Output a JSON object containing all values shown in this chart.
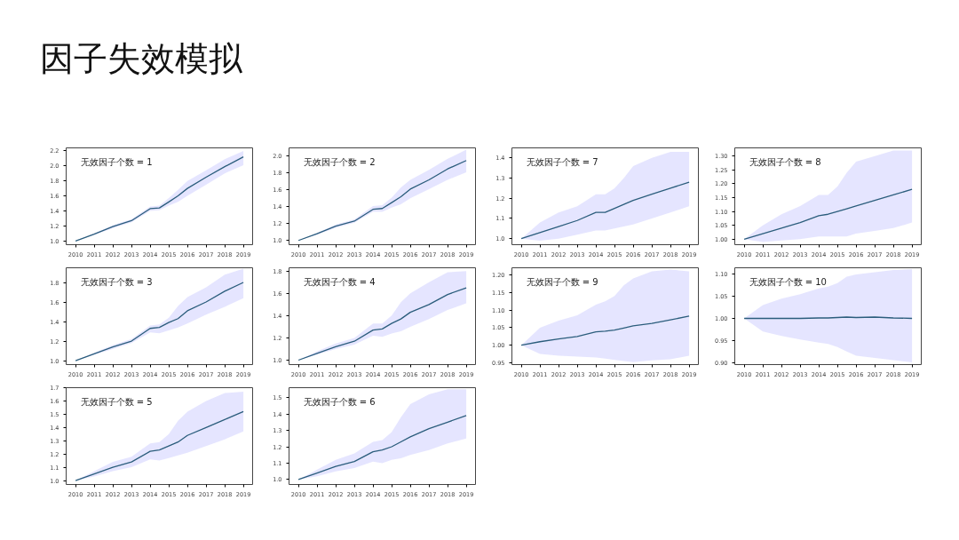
{
  "chart_data": [
    {
      "type": "other",
      "title": "因子失效模拟"
    },
    {
      "type": "line",
      "annotations": [
        "无效因子个数 = 1"
      ],
      "x": [
        "2010-01",
        "2011-01",
        "2012-01",
        "2013-01",
        "2014-01",
        "2014-07",
        "2015-01",
        "2015-07",
        "2016-01",
        "2017-01",
        "2018-01",
        "2019-01"
      ],
      "xlim": [
        "2009-07",
        "2019-07"
      ],
      "xticks": [
        "2010",
        "2011",
        "2012",
        "2013",
        "2014",
        "2015",
        "2016",
        "2017",
        "2018",
        "2019"
      ],
      "ylim": [
        0.95,
        2.24
      ],
      "yticks": [
        {
          "value": 1.0,
          "label": "1.0"
        },
        {
          "value": 1.2,
          "label": "1.2"
        },
        {
          "value": 1.4,
          "label": "1.4"
        },
        {
          "value": 1.6,
          "label": "1.6"
        },
        {
          "value": 1.8,
          "label": "1.8"
        },
        {
          "value": 2.0,
          "label": "2.0"
        },
        {
          "value": 2.2,
          "label": "2.2"
        }
      ],
      "series": [
        {
          "color": "#2b5d7c",
          "values": [
            1.0,
            1.09,
            1.19,
            1.27,
            1.43,
            1.44,
            1.52,
            1.6,
            1.7,
            1.85,
            1.99,
            2.12
          ],
          "lower": [
            1.0,
            1.08,
            1.17,
            1.25,
            1.4,
            1.41,
            1.47,
            1.52,
            1.6,
            1.75,
            1.9,
            2.01
          ],
          "upper": [
            1.0,
            1.1,
            1.21,
            1.29,
            1.46,
            1.47,
            1.57,
            1.68,
            1.8,
            1.94,
            2.09,
            2.2
          ]
        }
      ]
    },
    {
      "type": "line",
      "annotations": [
        "无效因子个数 = 2"
      ],
      "x": [
        "2010-01",
        "2011-01",
        "2012-01",
        "2013-01",
        "2014-01",
        "2014-07",
        "2015-01",
        "2015-07",
        "2016-01",
        "2017-01",
        "2018-01",
        "2019-01"
      ],
      "xlim": [
        "2009-07",
        "2019-07"
      ],
      "xticks": [
        "2010",
        "2011",
        "2012",
        "2013",
        "2014",
        "2015",
        "2016",
        "2017",
        "2018",
        "2019"
      ],
      "ylim": [
        0.95,
        2.1
      ],
      "yticks": [
        {
          "value": 1.0,
          "label": "1.0"
        },
        {
          "value": 1.2,
          "label": "1.2"
        },
        {
          "value": 1.4,
          "label": "1.4"
        },
        {
          "value": 1.6,
          "label": "1.6"
        },
        {
          "value": 1.8,
          "label": "1.8"
        },
        {
          "value": 2.0,
          "label": "2.0"
        }
      ],
      "series": [
        {
          "color": "#2b5d7c",
          "values": [
            1.0,
            1.08,
            1.17,
            1.23,
            1.37,
            1.38,
            1.45,
            1.52,
            1.61,
            1.72,
            1.85,
            1.95
          ],
          "lower": [
            1.0,
            1.07,
            1.15,
            1.21,
            1.34,
            1.34,
            1.39,
            1.43,
            1.5,
            1.61,
            1.72,
            1.81
          ],
          "upper": [
            1.0,
            1.09,
            1.19,
            1.25,
            1.41,
            1.42,
            1.51,
            1.63,
            1.72,
            1.84,
            1.97,
            2.08
          ]
        }
      ]
    },
    {
      "type": "line",
      "annotations": [
        "无效因子个数 = 7"
      ],
      "x": [
        "2010-01",
        "2011-01",
        "2012-01",
        "2013-01",
        "2014-01",
        "2014-07",
        "2015-01",
        "2015-07",
        "2016-01",
        "2017-01",
        "2018-01",
        "2019-01"
      ],
      "xlim": [
        "2009-07",
        "2019-07"
      ],
      "xticks": [
        "2010",
        "2011",
        "2012",
        "2013",
        "2014",
        "2015",
        "2016",
        "2017",
        "2018",
        "2019"
      ],
      "ylim": [
        0.97,
        1.45
      ],
      "yticks": [
        {
          "value": 1.0,
          "label": "1.0"
        },
        {
          "value": 1.1,
          "label": "1.1"
        },
        {
          "value": 1.2,
          "label": "1.2"
        },
        {
          "value": 1.3,
          "label": "1.3"
        },
        {
          "value": 1.4,
          "label": "1.4"
        }
      ],
      "series": [
        {
          "color": "#2b5d7c",
          "values": [
            1.0,
            1.03,
            1.06,
            1.09,
            1.13,
            1.13,
            1.15,
            1.17,
            1.19,
            1.22,
            1.25,
            1.28
          ],
          "lower": [
            1.0,
            0.99,
            1.0,
            1.02,
            1.04,
            1.04,
            1.05,
            1.06,
            1.07,
            1.1,
            1.13,
            1.16
          ],
          "upper": [
            1.0,
            1.08,
            1.13,
            1.16,
            1.22,
            1.22,
            1.25,
            1.3,
            1.36,
            1.4,
            1.43,
            1.43
          ]
        }
      ]
    },
    {
      "type": "line",
      "annotations": [
        "无效因子个数 = 8"
      ],
      "x": [
        "2010-01",
        "2011-01",
        "2012-01",
        "2013-01",
        "2014-01",
        "2014-07",
        "2015-01",
        "2015-07",
        "2016-01",
        "2017-01",
        "2018-01",
        "2019-01"
      ],
      "xlim": [
        "2009-07",
        "2019-07"
      ],
      "xticks": [
        "2010",
        "2011",
        "2012",
        "2013",
        "2014",
        "2015",
        "2016",
        "2017",
        "2018",
        "2019"
      ],
      "ylim": [
        0.98,
        1.33
      ],
      "yticks": [
        {
          "value": 1.0,
          "label": "1.00"
        },
        {
          "value": 1.05,
          "label": "1.05"
        },
        {
          "value": 1.1,
          "label": "1.10"
        },
        {
          "value": 1.15,
          "label": "1.15"
        },
        {
          "value": 1.2,
          "label": "1.20"
        },
        {
          "value": 1.25,
          "label": "1.25"
        },
        {
          "value": 1.3,
          "label": "1.30"
        }
      ],
      "series": [
        {
          "color": "#2b5d7c",
          "values": [
            1.0,
            1.02,
            1.04,
            1.06,
            1.085,
            1.09,
            1.1,
            1.11,
            1.12,
            1.14,
            1.16,
            1.18
          ],
          "lower": [
            1.0,
            0.99,
            0.995,
            1.0,
            1.01,
            1.01,
            1.01,
            1.01,
            1.02,
            1.03,
            1.04,
            1.06
          ],
          "upper": [
            1.0,
            1.05,
            1.09,
            1.12,
            1.16,
            1.16,
            1.19,
            1.24,
            1.28,
            1.3,
            1.32,
            1.32
          ]
        }
      ]
    },
    {
      "type": "line",
      "annotations": [
        "无效因子个数 = 3"
      ],
      "x": [
        "2010-01",
        "2011-01",
        "2012-01",
        "2013-01",
        "2014-01",
        "2014-07",
        "2015-01",
        "2015-07",
        "2016-01",
        "2017-01",
        "2018-01",
        "2019-01"
      ],
      "xlim": [
        "2009-07",
        "2019-07"
      ],
      "xticks": [
        "2010",
        "2011",
        "2012",
        "2013",
        "2014",
        "2015",
        "2016",
        "2017",
        "2018",
        "2019"
      ],
      "ylim": [
        0.96,
        1.95
      ],
      "yticks": [
        {
          "value": 1.0,
          "label": "1.0"
        },
        {
          "value": 1.2,
          "label": "1.2"
        },
        {
          "value": 1.4,
          "label": "1.4"
        },
        {
          "value": 1.6,
          "label": "1.6"
        },
        {
          "value": 1.8,
          "label": "1.8"
        }
      ],
      "series": [
        {
          "color": "#2b5d7c",
          "values": [
            1.0,
            1.07,
            1.14,
            1.2,
            1.33,
            1.34,
            1.39,
            1.43,
            1.51,
            1.6,
            1.71,
            1.8
          ],
          "lower": [
            1.0,
            1.06,
            1.12,
            1.18,
            1.29,
            1.28,
            1.31,
            1.34,
            1.38,
            1.47,
            1.55,
            1.64
          ],
          "upper": [
            1.0,
            1.08,
            1.16,
            1.22,
            1.36,
            1.37,
            1.44,
            1.56,
            1.65,
            1.75,
            1.88,
            1.94
          ]
        }
      ]
    },
    {
      "type": "line",
      "annotations": [
        "无效因子个数 = 4"
      ],
      "x": [
        "2010-01",
        "2011-01",
        "2012-01",
        "2013-01",
        "2014-01",
        "2014-07",
        "2015-01",
        "2015-07",
        "2016-01",
        "2017-01",
        "2018-01",
        "2019-01"
      ],
      "xlim": [
        "2009-07",
        "2019-07"
      ],
      "xticks": [
        "2010",
        "2011",
        "2012",
        "2013",
        "2014",
        "2015",
        "2016",
        "2017",
        "2018",
        "2019"
      ],
      "ylim": [
        0.96,
        1.83
      ],
      "yticks": [
        {
          "value": 1.0,
          "label": "1.0"
        },
        {
          "value": 1.2,
          "label": "1.2"
        },
        {
          "value": 1.4,
          "label": "1.4"
        },
        {
          "value": 1.6,
          "label": "1.6"
        },
        {
          "value": 1.8,
          "label": "1.8"
        }
      ],
      "series": [
        {
          "color": "#2b5d7c",
          "values": [
            1.0,
            1.06,
            1.12,
            1.17,
            1.27,
            1.28,
            1.33,
            1.37,
            1.43,
            1.5,
            1.59,
            1.65
          ],
          "lower": [
            1.0,
            1.05,
            1.1,
            1.14,
            1.22,
            1.21,
            1.24,
            1.26,
            1.3,
            1.37,
            1.45,
            1.51
          ],
          "upper": [
            1.0,
            1.08,
            1.15,
            1.2,
            1.33,
            1.33,
            1.4,
            1.52,
            1.6,
            1.7,
            1.79,
            1.8
          ]
        }
      ]
    },
    {
      "type": "line",
      "annotations": [
        "无效因子个数 = 9"
      ],
      "x": [
        "2010-01",
        "2011-01",
        "2012-01",
        "2013-01",
        "2014-01",
        "2014-07",
        "2015-01",
        "2015-07",
        "2016-01",
        "2017-01",
        "2018-01",
        "2019-01"
      ],
      "xlim": [
        "2009-07",
        "2019-07"
      ],
      "xticks": [
        "2010",
        "2011",
        "2012",
        "2013",
        "2014",
        "2015",
        "2016",
        "2017",
        "2018",
        "2019"
      ],
      "ylim": [
        0.945,
        1.22
      ],
      "yticks": [
        {
          "value": 0.95,
          "label": "0.95"
        },
        {
          "value": 1.0,
          "label": "1.00"
        },
        {
          "value": 1.05,
          "label": "1.05"
        },
        {
          "value": 1.1,
          "label": "1.10"
        },
        {
          "value": 1.15,
          "label": "1.15"
        },
        {
          "value": 1.2,
          "label": "1.20"
        }
      ],
      "series": [
        {
          "color": "#2b5d7c",
          "values": [
            1.0,
            1.01,
            1.018,
            1.025,
            1.038,
            1.04,
            1.043,
            1.049,
            1.055,
            1.062,
            1.072,
            1.083
          ],
          "lower": [
            1.0,
            0.975,
            0.97,
            0.968,
            0.965,
            0.962,
            0.958,
            0.955,
            0.952,
            0.957,
            0.96,
            0.97
          ],
          "upper": [
            1.0,
            1.05,
            1.07,
            1.085,
            1.115,
            1.125,
            1.14,
            1.17,
            1.19,
            1.21,
            1.215,
            1.21
          ]
        }
      ]
    },
    {
      "type": "line",
      "annotations": [
        "无效因子个数 = 10"
      ],
      "x": [
        "2010-01",
        "2011-01",
        "2012-01",
        "2013-01",
        "2014-01",
        "2014-07",
        "2015-01",
        "2015-07",
        "2016-01",
        "2017-01",
        "2018-01",
        "2019-01"
      ],
      "xlim": [
        "2009-07",
        "2019-07"
      ],
      "xticks": [
        "2010",
        "2011",
        "2012",
        "2013",
        "2014",
        "2015",
        "2016",
        "2017",
        "2018",
        "2019"
      ],
      "ylim": [
        0.895,
        1.115
      ],
      "yticks": [
        {
          "value": 0.9,
          "label": "0.90"
        },
        {
          "value": 0.95,
          "label": "0.95"
        },
        {
          "value": 1.0,
          "label": "1.00"
        },
        {
          "value": 1.05,
          "label": "1.05"
        },
        {
          "value": 1.1,
          "label": "1.10"
        }
      ],
      "series": [
        {
          "color": "#2b5d7c",
          "values": [
            1.0,
            1.0,
            1.0,
            1.0,
            1.001,
            1.001,
            1.002,
            1.003,
            1.002,
            1.003,
            1.001,
            1.0
          ],
          "lower": [
            1.0,
            0.97,
            0.96,
            0.952,
            0.945,
            0.942,
            0.935,
            0.925,
            0.915,
            0.91,
            0.905,
            0.9
          ],
          "upper": [
            1.0,
            1.03,
            1.045,
            1.055,
            1.068,
            1.072,
            1.08,
            1.095,
            1.1,
            1.105,
            1.11,
            1.112
          ]
        }
      ]
    },
    {
      "type": "line",
      "annotations": [
        "无效因子个数 = 5"
      ],
      "x": [
        "2010-01",
        "2011-01",
        "2012-01",
        "2013-01",
        "2014-01",
        "2014-07",
        "2015-01",
        "2015-07",
        "2016-01",
        "2017-01",
        "2018-01",
        "2019-01"
      ],
      "xlim": [
        "2009-07",
        "2019-07"
      ],
      "xticks": [
        "2010",
        "2011",
        "2012",
        "2013",
        "2014",
        "2015",
        "2016",
        "2017",
        "2018",
        "2019"
      ],
      "ylim": [
        0.97,
        1.7
      ],
      "yticks": [
        {
          "value": 1.0,
          "label": "1.0"
        },
        {
          "value": 1.1,
          "label": "1.1"
        },
        {
          "value": 1.2,
          "label": "1.2"
        },
        {
          "value": 1.3,
          "label": "1.3"
        },
        {
          "value": 1.4,
          "label": "1.4"
        },
        {
          "value": 1.5,
          "label": "1.5"
        },
        {
          "value": 1.6,
          "label": "1.6"
        },
        {
          "value": 1.7,
          "label": "1.7"
        }
      ],
      "series": [
        {
          "color": "#2b5d7c",
          "values": [
            1.0,
            1.05,
            1.1,
            1.14,
            1.22,
            1.23,
            1.26,
            1.29,
            1.34,
            1.4,
            1.46,
            1.52
          ],
          "lower": [
            1.0,
            1.03,
            1.07,
            1.1,
            1.16,
            1.15,
            1.17,
            1.19,
            1.21,
            1.26,
            1.31,
            1.37
          ],
          "upper": [
            1.0,
            1.07,
            1.14,
            1.18,
            1.28,
            1.29,
            1.35,
            1.45,
            1.52,
            1.6,
            1.66,
            1.67
          ]
        }
      ]
    },
    {
      "type": "line",
      "annotations": [
        "无效因子个数 = 6"
      ],
      "x": [
        "2010-01",
        "2011-01",
        "2012-01",
        "2013-01",
        "2014-01",
        "2014-07",
        "2015-01",
        "2015-07",
        "2016-01",
        "2017-01",
        "2018-01",
        "2019-01"
      ],
      "xlim": [
        "2009-07",
        "2019-07"
      ],
      "xticks": [
        "2010",
        "2011",
        "2012",
        "2013",
        "2014",
        "2015",
        "2016",
        "2017",
        "2018",
        "2019"
      ],
      "ylim": [
        0.97,
        1.56
      ],
      "yticks": [
        {
          "value": 1.0,
          "label": "1.0"
        },
        {
          "value": 1.1,
          "label": "1.1"
        },
        {
          "value": 1.2,
          "label": "1.2"
        },
        {
          "value": 1.3,
          "label": "1.3"
        },
        {
          "value": 1.4,
          "label": "1.4"
        },
        {
          "value": 1.5,
          "label": "1.5"
        }
      ],
      "series": [
        {
          "color": "#2b5d7c",
          "values": [
            1.0,
            1.04,
            1.08,
            1.11,
            1.17,
            1.18,
            1.2,
            1.23,
            1.26,
            1.31,
            1.35,
            1.39
          ],
          "lower": [
            1.0,
            1.02,
            1.05,
            1.07,
            1.11,
            1.1,
            1.12,
            1.13,
            1.15,
            1.18,
            1.22,
            1.25
          ],
          "upper": [
            1.0,
            1.06,
            1.12,
            1.16,
            1.23,
            1.24,
            1.29,
            1.38,
            1.46,
            1.52,
            1.55,
            1.55
          ]
        }
      ]
    }
  ]
}
